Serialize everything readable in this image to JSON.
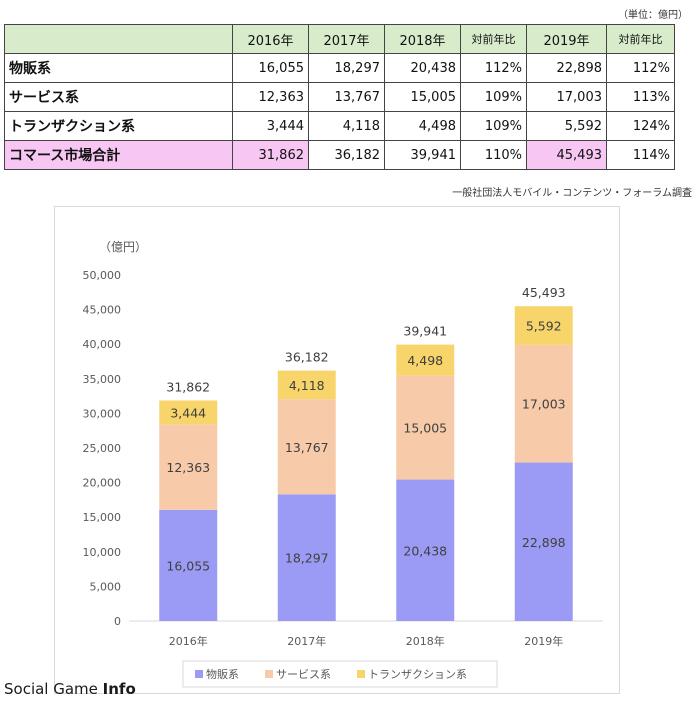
{
  "unit_note": "（単位：億円）",
  "table": {
    "headers": [
      "",
      "2016年",
      "2017年",
      "2018年",
      "対前年比",
      "2019年",
      "対前年比"
    ],
    "rows": [
      {
        "label": "物販系",
        "cells": [
          "16,055",
          "18,297",
          "20,438",
          "112%",
          "22,898",
          "112%"
        ]
      },
      {
        "label": "サービス系",
        "cells": [
          "12,363",
          "13,767",
          "15,005",
          "109%",
          "17,003",
          "113%"
        ]
      },
      {
        "label": "トランザクション系",
        "cells": [
          "3,444",
          "4,118",
          "4,498",
          "109%",
          "5,592",
          "124%"
        ]
      },
      {
        "label": "コマース市場合計",
        "cells": [
          "31,862",
          "36,182",
          "39,941",
          "110%",
          "45,493",
          "114%"
        ]
      }
    ]
  },
  "source": "一般社団法人モバイル・コンテンツ・フォーラム調査",
  "watermark": {
    "part1": "Social Game ",
    "part2": "Info"
  },
  "chart_data": {
    "type": "bar",
    "stacked": true,
    "ylabel": "（億円）",
    "ylim": [
      0,
      50000
    ],
    "yticks": [
      "0",
      "5,000",
      "10,000",
      "15,000",
      "20,000",
      "25,000",
      "30,000",
      "35,000",
      "40,000",
      "45,000",
      "50,000"
    ],
    "categories": [
      "2016年",
      "2017年",
      "2018年",
      "2019年"
    ],
    "series": [
      {
        "name": "物販系",
        "color": "#9b9bf5",
        "values": [
          16055,
          18297,
          20438,
          22898
        ],
        "labels": [
          "16,055",
          "18,297",
          "20,438",
          "22,898"
        ]
      },
      {
        "name": "サービス系",
        "color": "#f7cba9",
        "values": [
          12363,
          13767,
          15005,
          17003
        ],
        "labels": [
          "12,363",
          "13,767",
          "15,005",
          "17,003"
        ]
      },
      {
        "name": "トランザクション系",
        "color": "#f8d56a",
        "values": [
          3444,
          4118,
          4498,
          5592
        ],
        "labels": [
          "3,444",
          "4,118",
          "4,498",
          "5,592"
        ]
      }
    ],
    "totals": [
      "31,862",
      "36,182",
      "39,941",
      "45,493"
    ],
    "grid": false,
    "legend_position": "bottom"
  }
}
